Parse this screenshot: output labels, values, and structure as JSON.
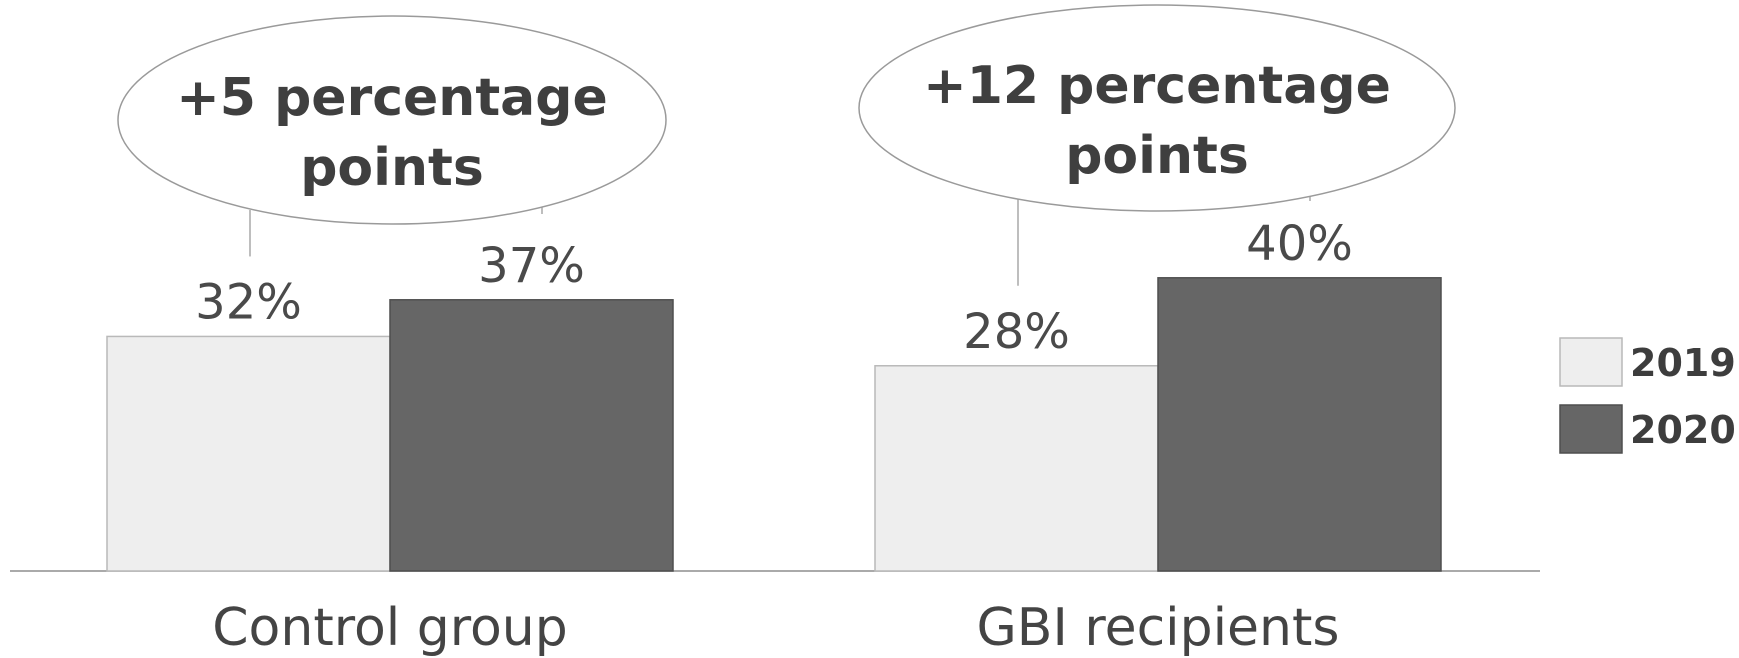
{
  "chart_data": {
    "type": "bar",
    "categories": [
      "Control group",
      "GBI recipients"
    ],
    "series": [
      {
        "name": "2019",
        "values": [
          32,
          28
        ],
        "labels": [
          "32%",
          "28%"
        ],
        "color": "#eeeeee"
      },
      {
        "name": "2020",
        "values": [
          37,
          40
        ],
        "labels": [
          "37%",
          "40%"
        ],
        "color": "#666666"
      }
    ],
    "annotations": [
      {
        "line1": "+5 percentage",
        "line2": "points"
      },
      {
        "line1": "+12 percentage",
        "line2": "points"
      }
    ],
    "unit": "%",
    "legend_position": "right",
    "grid": false
  }
}
